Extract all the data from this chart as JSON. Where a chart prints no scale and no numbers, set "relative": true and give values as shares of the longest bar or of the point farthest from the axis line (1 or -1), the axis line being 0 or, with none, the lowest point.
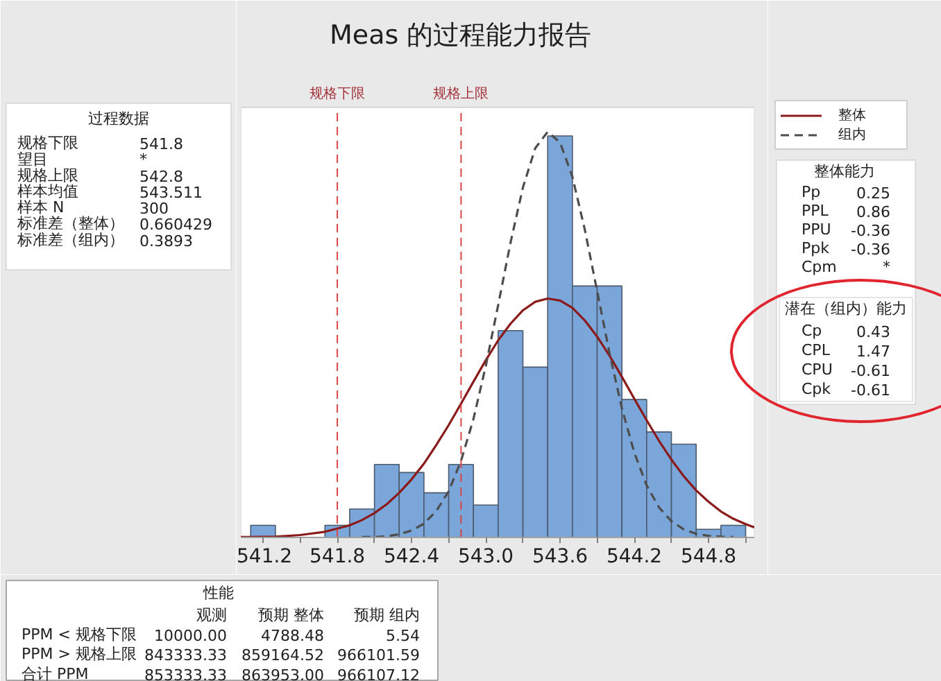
{
  "chart_data": [
    {
      "type": "histogram",
      "title": "Meas 的过程能力报告",
      "relative": true,
      "color": "#7ba6d9",
      "bins": [
        541.1,
        541.3,
        541.5,
        541.7,
        541.9,
        542.1,
        542.3,
        542.5,
        542.7,
        542.9,
        543.1,
        543.3,
        543.5,
        543.7,
        543.9,
        544.1,
        544.3,
        544.5,
        544.7,
        544.9,
        545.1
      ],
      "values": [
        0.03,
        0,
        0,
        0.03,
        0.07,
        0.18,
        0.16,
        0.11,
        0.18,
        0.08,
        0.51,
        0.42,
        0.99,
        0.62,
        0.62,
        0.34,
        0.26,
        0.23,
        0.02,
        0.03
      ],
      "xlim": [
        541.02,
        545.17
      ],
      "xticks": [
        541.2,
        {
          "value": 541.5,
          "label": null
        },
        541.8,
        {
          "value": 542.1,
          "label": null
        },
        542.4,
        {
          "value": 542.7,
          "label": null
        },
        {
          "value": 543.0,
          "label": "543.0"
        },
        {
          "value": 543.3,
          "label": null
        },
        543.6,
        {
          "value": 543.9,
          "label": null
        },
        544.2,
        {
          "value": 544.5,
          "label": null
        },
        544.8,
        {
          "value": 545.1,
          "label": null
        }
      ],
      "series": [
        {
          "name": "整体",
          "type": "line",
          "color": "#8b1a1a",
          "line_style": "solid",
          "x": [
            541.02,
            541.1,
            541.3,
            541.5,
            541.7,
            541.9,
            542.0,
            542.1,
            542.2,
            542.3,
            542.4,
            542.5,
            542.6,
            542.7,
            542.8,
            542.9,
            543.0,
            543.1,
            543.2,
            543.3,
            543.4,
            543.5,
            543.6,
            543.7,
            543.8,
            543.9,
            544.0,
            544.1,
            544.2,
            544.3,
            544.4,
            544.5,
            544.6,
            544.7,
            544.8,
            544.9,
            545.0,
            545.1,
            545.17
          ],
          "values": [
            0.001,
            0.001,
            0.002,
            0.006,
            0.014,
            0.03,
            0.043,
            0.06,
            0.082,
            0.11,
            0.143,
            0.182,
            0.228,
            0.277,
            0.33,
            0.384,
            0.437,
            0.486,
            0.527,
            0.56,
            0.581,
            0.589,
            0.584,
            0.566,
            0.535,
            0.495,
            0.448,
            0.396,
            0.342,
            0.289,
            0.238,
            0.192,
            0.151,
            0.116,
            0.088,
            0.064,
            0.046,
            0.033,
            0.025
          ]
        },
        {
          "name": "组内",
          "type": "line",
          "color": "#4d4d4d",
          "line_style": "dashed",
          "x": [
            542.0,
            542.1,
            542.2,
            542.3,
            542.4,
            542.5,
            542.6,
            542.7,
            542.8,
            542.9,
            543.0,
            543.1,
            543.2,
            543.3,
            543.4,
            543.5,
            543.6,
            543.7,
            543.8,
            543.9,
            544.0,
            544.1,
            544.2,
            544.3,
            544.4,
            544.5,
            544.6,
            544.7,
            544.8,
            544.9,
            545.0
          ],
          "values": [
            0.001,
            0.001,
            0.003,
            0.008,
            0.017,
            0.034,
            0.065,
            0.114,
            0.189,
            0.292,
            0.423,
            0.573,
            0.727,
            0.863,
            0.96,
            1.0,
            0.974,
            0.889,
            0.759,
            0.607,
            0.454,
            0.318,
            0.209,
            0.128,
            0.074,
            0.04,
            0.02,
            0.009,
            0.004,
            0.002,
            0.001
          ]
        }
      ],
      "ref_lines": [
        {
          "axis": "x",
          "value": 541.8,
          "label": "规格下限",
          "color": "#d94545",
          "line_style": "dashed"
        },
        {
          "axis": "x",
          "value": 542.8,
          "label": "规格上限",
          "color": "#d94545",
          "line_style": "dashed"
        }
      ],
      "legend": "top right"
    },
    {
      "type": "other",
      "title": "过程数据",
      "y_categories": [
        "规格下限",
        "望目",
        "规格上限",
        "样本均值",
        "样本 N",
        "标准差（整体）",
        "标准差（组内）"
      ],
      "cell_labels": [
        [
          "541.8"
        ],
        [
          "*"
        ],
        [
          "542.8"
        ],
        [
          "543.511"
        ],
        [
          "300"
        ],
        [
          "0.660429"
        ],
        [
          "0.3893"
        ]
      ]
    },
    {
      "type": "other",
      "title": "整体能力",
      "y_categories": [
        "Pp",
        "PPL",
        "PPU",
        "Ppk",
        "Cpm"
      ],
      "cell_labels": [
        [
          "0.25"
        ],
        [
          "0.86"
        ],
        [
          "-0.36"
        ],
        [
          "-0.36"
        ],
        [
          "*"
        ]
      ]
    },
    {
      "type": "other",
      "title": "潜在（组内）能力",
      "y_categories": [
        "Cp",
        "CPL",
        "CPU",
        "Cpk"
      ],
      "cell_labels": [
        [
          "0.43"
        ],
        [
          "1.47"
        ],
        [
          "-0.61"
        ],
        [
          "-0.61"
        ]
      ]
    },
    {
      "type": "other",
      "title": "性能",
      "categories": [
        "观测",
        "预期 整体",
        "预期 组内"
      ],
      "y_categories": [
        "PPM < 规格下限",
        "PPM > 规格上限",
        "合计 PPM"
      ],
      "cell_labels": [
        [
          "10000.00",
          "4788.48",
          "5.54"
        ],
        [
          "843333.33",
          "859164.52",
          "966101.59"
        ],
        [
          "853333.33",
          "863953.00",
          "966107.12"
        ]
      ]
    }
  ]
}
